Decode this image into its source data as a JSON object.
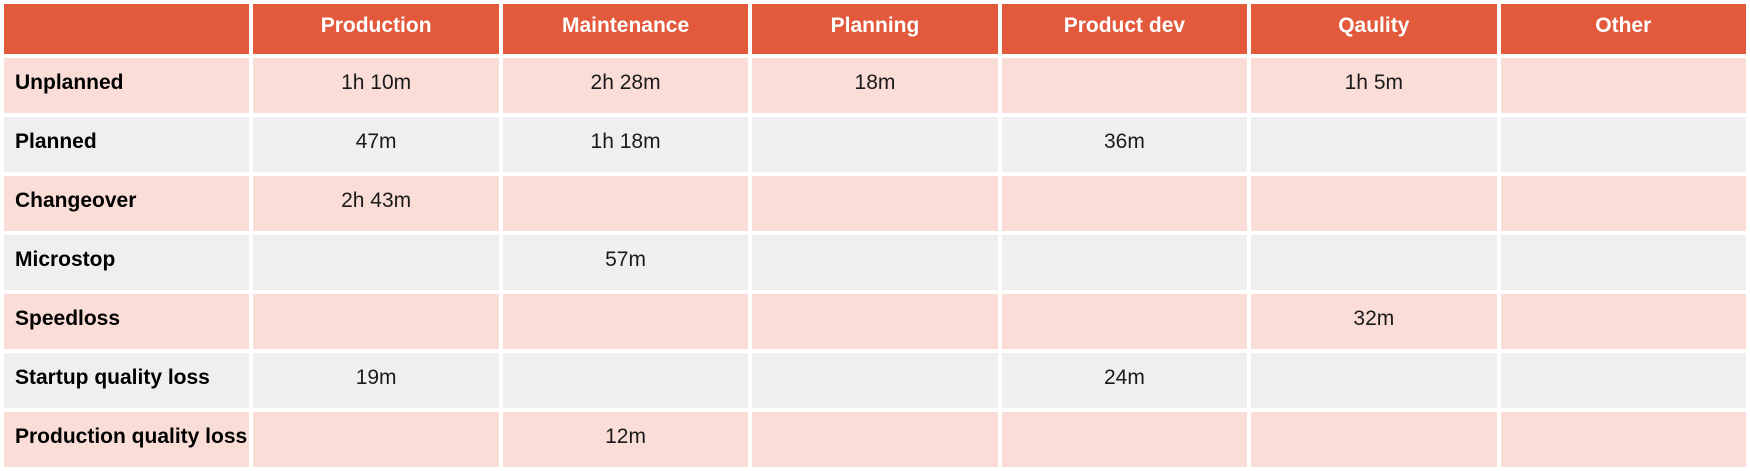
{
  "colors": {
    "header_bg": "#E2593C",
    "header_text": "#FFFFFF",
    "row_pink": "#FADDD6",
    "row_gray": "#F0EFEF",
    "cell_text": "#1A1A1A"
  },
  "table": {
    "corner_label": "",
    "columns": [
      "Production",
      "Maintenance",
      "Planning",
      "Product dev",
      "Qaulity",
      "Other"
    ],
    "rows": [
      {
        "label": "Unplanned",
        "values": [
          "1h 10m",
          "2h 28m",
          "18m",
          "",
          "1h 5m",
          ""
        ]
      },
      {
        "label": "Planned",
        "values": [
          "47m",
          "1h 18m",
          "",
          "36m",
          "",
          ""
        ]
      },
      {
        "label": "Changeover",
        "values": [
          "2h 43m",
          "",
          "",
          "",
          "",
          ""
        ]
      },
      {
        "label": "Microstop",
        "values": [
          "",
          "57m",
          "",
          "",
          "",
          ""
        ]
      },
      {
        "label": "Speedloss",
        "values": [
          "",
          "",
          "",
          "",
          "32m",
          ""
        ]
      },
      {
        "label": "Startup quality loss",
        "values": [
          "19m",
          "",
          "",
          "24m",
          "",
          ""
        ]
      },
      {
        "label": "Production quality loss",
        "values": [
          "",
          "12m",
          "",
          "",
          "",
          ""
        ]
      }
    ]
  },
  "chart_data": {
    "type": "table",
    "title": "",
    "columns": [
      "Production",
      "Maintenance",
      "Planning",
      "Product dev",
      "Qaulity",
      "Other"
    ],
    "row_labels": [
      "Unplanned",
      "Planned",
      "Changeover",
      "Microstop",
      "Speedloss",
      "Startup quality loss",
      "Production quality loss"
    ],
    "cells": [
      [
        "1h 10m",
        "2h 28m",
        "18m",
        "",
        "1h 5m",
        ""
      ],
      [
        "47m",
        "1h 18m",
        "",
        "36m",
        "",
        ""
      ],
      [
        "2h 43m",
        "",
        "",
        "",
        "",
        ""
      ],
      [
        "",
        "57m",
        "",
        "",
        "",
        ""
      ],
      [
        "",
        "",
        "",
        "",
        "32m",
        ""
      ],
      [
        "19m",
        "",
        "",
        "24m",
        "",
        ""
      ],
      [
        "",
        "12m",
        "",
        "",
        "",
        ""
      ]
    ],
    "values_minutes": [
      [
        70,
        148,
        18,
        null,
        65,
        null
      ],
      [
        47,
        78,
        null,
        36,
        null,
        null
      ],
      [
        163,
        null,
        null,
        null,
        null,
        null
      ],
      [
        null,
        57,
        null,
        null,
        null,
        null
      ],
      [
        null,
        null,
        null,
        null,
        32,
        null
      ],
      [
        19,
        null,
        null,
        24,
        null,
        null
      ],
      [
        null,
        12,
        null,
        null,
        null,
        null
      ]
    ],
    "layout_hints": {
      "row_stripe_colors": [
        "#FADDD6",
        "#F0EFEF"
      ],
      "header_color": "#E2593C",
      "grid": "white 4px gaps between cells"
    }
  }
}
